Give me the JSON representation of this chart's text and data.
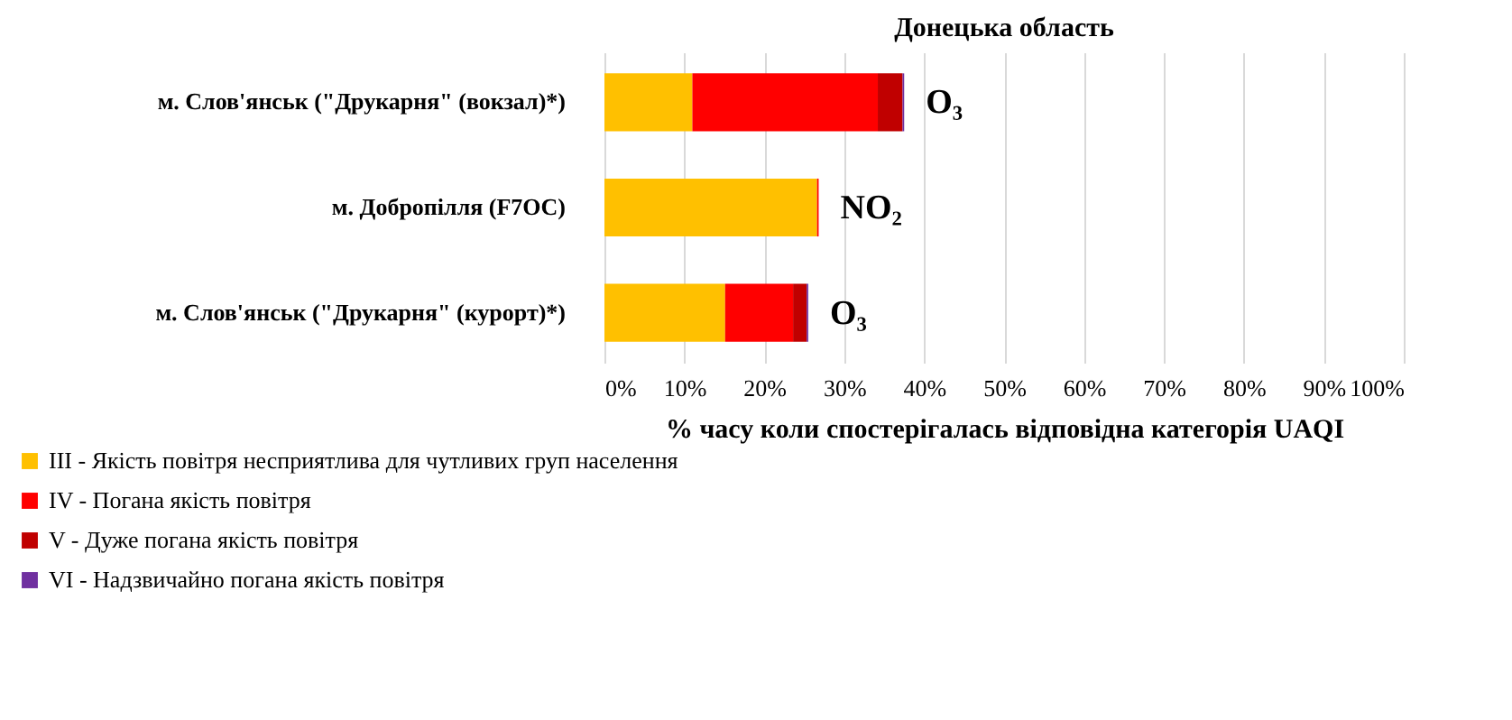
{
  "chart_data": {
    "type": "bar",
    "orientation": "horizontal",
    "stacked": true,
    "title": "Донецька область",
    "xlabel": "% часу коли спостерігалась відповідна категорія UAQI",
    "categories": [
      "м. Слов'янськ (\"Друкарня\" (вокзал)*)",
      "м. Добропілля (F7OC)",
      "м. Слов'янськ (\"Друкарня\" (курорт)*)"
    ],
    "series": [
      {
        "name": "III - Якість повітря  несприятлива  для чутливих  груп  населення",
        "color": "#ffc000",
        "values": [
          11.0,
          26.6,
          15.1
        ]
      },
      {
        "name": "IV - Погана  якість повітря",
        "color": "#ff0000",
        "values": [
          23.2,
          0.2,
          8.5
        ]
      },
      {
        "name": "V - Дуже погана  якість повітря",
        "color": "#c00000",
        "values": [
          3.1,
          0,
          1.7
        ]
      },
      {
        "name": "VI - Надзвичайно  погана  якість повітря",
        "color": "#7030a0",
        "values": [
          0.2,
          0,
          0.2
        ]
      }
    ],
    "xlim": [
      0,
      100
    ],
    "xticks": [
      {
        "value": 0,
        "label": "0%"
      },
      {
        "value": 10,
        "label": "10%"
      },
      {
        "value": 20,
        "label": "20%"
      },
      {
        "value": 30,
        "label": "30%"
      },
      {
        "value": 40,
        "label": "40%"
      },
      {
        "value": 50,
        "label": "50%"
      },
      {
        "value": 60,
        "label": "60%"
      },
      {
        "value": 70,
        "label": "70%"
      },
      {
        "value": 80,
        "label": "80%"
      },
      {
        "value": 90,
        "label": "90%"
      },
      {
        "value": 100,
        "label": "100%"
      }
    ],
    "annotations": [
      {
        "text": "O₃",
        "x": 37.5,
        "y": "м. Слов'янськ (\"Друкарня\" (вокзал)*)"
      },
      {
        "text": "NO₂",
        "x": 26.8,
        "y": "м. Добропілля (F7OC)"
      },
      {
        "text": "O₃",
        "x": 25.5,
        "y": "м. Слов'янськ (\"Друкарня\" (курорт)*)"
      }
    ],
    "grid": "x",
    "legend": "bottom"
  }
}
